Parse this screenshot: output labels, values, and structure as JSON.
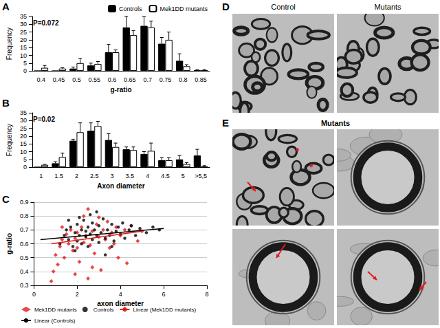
{
  "chart_data": [
    {
      "panel": "A",
      "type": "bar",
      "xlabel": "g-ratio",
      "ylabel": "Frequency",
      "annotations": [
        "P=0.072"
      ],
      "categories": [
        0.4,
        0.45,
        0.5,
        0.55,
        0.6,
        0.65,
        0.7,
        0.75,
        0.8,
        0.85
      ],
      "series": [
        {
          "name": "Controls",
          "color": "#000000",
          "values": [
            0,
            0,
            1.5,
            3.5,
            12,
            28,
            29,
            17.5,
            6.5,
            0.5
          ],
          "errors": [
            0,
            0,
            1,
            1.5,
            5,
            7,
            6,
            4,
            4.5,
            0.3
          ]
        },
        {
          "name": "Mek1DD mutants",
          "color": "#ffffff",
          "values": [
            2,
            1.5,
            5,
            4.5,
            12,
            23,
            28,
            20,
            3,
            0.5
          ],
          "errors": [
            1.5,
            0.5,
            3,
            1.5,
            1.5,
            3,
            4,
            5,
            1,
            0.3
          ]
        }
      ],
      "ylim": [
        0,
        35
      ],
      "yticks": [
        0,
        5,
        10,
        15,
        20,
        25,
        30,
        35
      ],
      "grid": false,
      "legend": "upper right"
    },
    {
      "panel": "B",
      "type": "bar",
      "xlabel": "Axon diameter",
      "ylabel": "Frequency",
      "annotations": [
        "P=0.02"
      ],
      "categories": [
        1,
        1.5,
        2,
        2.5,
        3,
        3.5,
        4,
        4.5,
        5,
        ">5,5"
      ],
      "series": [
        {
          "name": "Controls",
          "color": "#000000",
          "values": [
            0,
            2.5,
            17,
            23.5,
            17.5,
            11.5,
            8.5,
            4.5,
            5,
            7.5
          ],
          "errors": [
            0,
            1,
            1,
            5,
            4,
            1.5,
            1.5,
            1.5,
            2.5,
            4
          ]
        },
        {
          "name": "Mek1DD mutants",
          "color": "#ffffff",
          "values": [
            1.5,
            6.5,
            22.5,
            26.5,
            13,
            11,
            10.5,
            4.5,
            2,
            0.5
          ],
          "errors": [
            0.3,
            2.5,
            6,
            3,
            2.5,
            2,
            5,
            1.5,
            1,
            0.5
          ]
        }
      ],
      "ylim": [
        0,
        35
      ],
      "yticks": [
        0,
        5,
        10,
        15,
        20,
        25,
        30,
        35
      ],
      "grid": false
    },
    {
      "panel": "C",
      "type": "scatter",
      "xlabel": "axon diameter",
      "ylabel": "g-ratio",
      "xlim": [
        0,
        8
      ],
      "xticks": [
        0,
        2,
        4,
        6,
        8
      ],
      "ylim": [
        0.3,
        0.9
      ],
      "yticks": [
        0.3,
        0.4,
        0.5,
        0.6,
        0.7,
        0.8,
        0.9
      ],
      "grid": true,
      "legend": "bottom",
      "series": [
        {
          "name": "Mek1DD mutants",
          "color": "#e31a1c",
          "marker": "diamond",
          "x": [
            0.8,
            0.9,
            1.0,
            1.1,
            1.2,
            1.3,
            1.4,
            1.5,
            1.6,
            1.7,
            1.8,
            1.9,
            2.0,
            2.1,
            2.2,
            2.3,
            2.4,
            2.5,
            2.6,
            2.7,
            2.8,
            2.9,
            3.0,
            3.1,
            3.2,
            3.3,
            3.4,
            3.5,
            3.6,
            3.8,
            3.9,
            4.0,
            4.2,
            4.3,
            4.5,
            4.8,
            5.0,
            2.3,
            1.9,
            2.7,
            3.0,
            1.3,
            2.0,
            3.7,
            2.5
          ],
          "values": [
            0.33,
            0.4,
            0.52,
            0.45,
            0.58,
            0.63,
            0.5,
            0.67,
            0.6,
            0.7,
            0.55,
            0.64,
            0.68,
            0.47,
            0.72,
            0.61,
            0.66,
            0.85,
            0.59,
            0.69,
            0.53,
            0.74,
            0.65,
            0.41,
            0.7,
            0.63,
            0.76,
            0.57,
            0.68,
            0.72,
            0.5,
            0.66,
            0.7,
            0.46,
            0.73,
            0.62,
            0.69,
            0.8,
            0.38,
            0.43,
            0.79,
            0.72,
            0.57,
            0.6,
            0.35
          ]
        },
        {
          "name": "Controls",
          "color": "#000000",
          "marker": "circle",
          "x": [
            1.2,
            1.4,
            1.5,
            1.6,
            1.7,
            1.8,
            1.9,
            2.0,
            2.0,
            2.1,
            2.2,
            2.2,
            2.3,
            2.4,
            2.4,
            2.5,
            2.5,
            2.6,
            2.7,
            2.7,
            2.8,
            2.9,
            3.0,
            3.0,
            3.1,
            3.2,
            3.3,
            3.4,
            3.5,
            3.6,
            3.7,
            3.8,
            3.9,
            4.0,
            4.1,
            4.2,
            4.4,
            4.5,
            4.7,
            4.9,
            5.2,
            5.5,
            5.8,
            1.9,
            2.6,
            3.3,
            2.1,
            3.6,
            2.9,
            1.6
          ],
          "values": [
            0.6,
            0.66,
            0.7,
            0.63,
            0.72,
            0.58,
            0.68,
            0.74,
            0.62,
            0.66,
            0.7,
            0.6,
            0.77,
            0.65,
            0.69,
            0.72,
            0.58,
            0.67,
            0.63,
            0.75,
            0.7,
            0.66,
            0.61,
            0.73,
            0.68,
            0.78,
            0.64,
            0.7,
            0.66,
            0.74,
            0.62,
            0.69,
            0.72,
            0.67,
            0.75,
            0.64,
            0.7,
            0.73,
            0.66,
            0.71,
            0.68,
            0.72,
            0.7,
            0.55,
            0.81,
            0.52,
            0.79,
            0.58,
            0.83,
            0.77
          ]
        },
        {
          "name": "Linear (Mek1DD mutants)",
          "type": "line",
          "color": "#e31a1c",
          "line_style": "solid",
          "x": [
            0.8,
            5.0
          ],
          "values": [
            0.6,
            0.69
          ]
        },
        {
          "name": "Linear (Controls)",
          "type": "line",
          "color": "#000000",
          "line_style": "solid",
          "x": [
            0.3,
            6.0
          ],
          "values": [
            0.63,
            0.71
          ]
        }
      ]
    }
  ],
  "panels": [
    {
      "label": "D",
      "images": [
        "Control",
        "Mutants"
      ]
    },
    {
      "label": "E",
      "title": "Mutants",
      "annotations": [
        "*",
        "*"
      ]
    }
  ]
}
